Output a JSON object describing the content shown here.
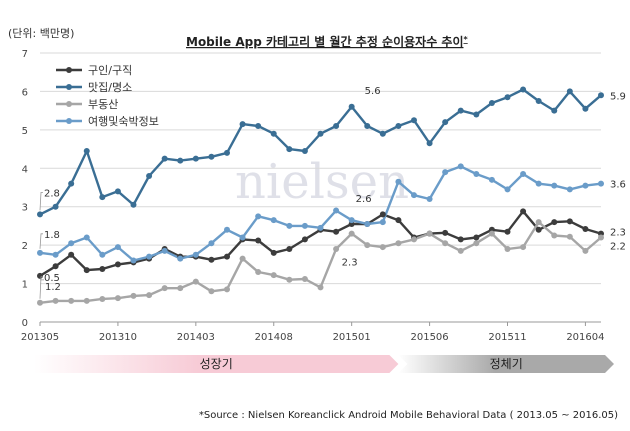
{
  "chart_data": {
    "type": "line",
    "title": "Mobile App 카테고리 별 월간 추정 순이용자수 추이",
    "title_superscript": "*",
    "unit_label": "(단위: 백만명)",
    "ylim": [
      0,
      7
    ],
    "yticks": [
      0,
      1,
      2,
      3,
      4,
      5,
      6,
      7
    ],
    "x": [
      "201305",
      "201306",
      "201307",
      "201308",
      "201309",
      "201310",
      "201311",
      "201312",
      "201401",
      "201402",
      "201403",
      "201404",
      "201405",
      "201406",
      "201407",
      "201408",
      "201409",
      "201410",
      "201411",
      "201412",
      "201501",
      "201502",
      "201503",
      "201504",
      "201505",
      "201506",
      "201507",
      "201508",
      "201509",
      "201510",
      "201511",
      "201512",
      "201601",
      "201602",
      "201603",
      "201604",
      "201605"
    ],
    "xtick_labels": [
      "201305",
      "201310",
      "201403",
      "201408",
      "201501",
      "201506",
      "201511",
      "201604"
    ],
    "xtick_indices": [
      0,
      5,
      10,
      15,
      20,
      25,
      30,
      35
    ],
    "grid": true,
    "legend_position": "top-left",
    "series": [
      {
        "name": "구인/구직",
        "color": "#3c3c3c",
        "values": [
          1.2,
          1.45,
          1.75,
          1.35,
          1.38,
          1.5,
          1.55,
          1.65,
          1.9,
          1.7,
          1.7,
          1.62,
          1.7,
          2.15,
          2.12,
          1.8,
          1.9,
          2.15,
          2.4,
          2.35,
          2.55,
          2.55,
          2.8,
          2.65,
          2.2,
          2.3,
          2.32,
          2.15,
          2.2,
          2.4,
          2.35,
          2.88,
          2.4,
          2.6,
          2.62,
          2.42,
          2.3
        ]
      },
      {
        "name": "맛집/명소",
        "color": "#3a6e94",
        "values": [
          2.8,
          3.0,
          3.6,
          4.45,
          3.25,
          3.4,
          3.05,
          3.8,
          4.25,
          4.2,
          4.25,
          4.3,
          4.4,
          5.15,
          5.1,
          4.9,
          4.5,
          4.45,
          4.9,
          5.1,
          5.6,
          5.1,
          4.9,
          5.1,
          5.25,
          4.65,
          5.2,
          5.5,
          5.4,
          5.7,
          5.85,
          6.05,
          5.75,
          5.5,
          6.0,
          5.55,
          5.9
        ]
      },
      {
        "name": "부동산",
        "color": "#a6a6a6",
        "values": [
          0.5,
          0.55,
          0.55,
          0.55,
          0.6,
          0.62,
          0.68,
          0.7,
          0.88,
          0.88,
          1.05,
          0.8,
          0.85,
          1.65,
          1.3,
          1.22,
          1.1,
          1.12,
          0.9,
          1.9,
          2.3,
          2.0,
          1.95,
          2.05,
          2.15,
          2.3,
          2.05,
          1.85,
          2.05,
          2.3,
          1.9,
          1.95,
          2.6,
          2.25,
          2.22,
          1.85,
          2.2
        ]
      },
      {
        "name": "여행및숙박정보",
        "color": "#6a9cc9",
        "values": [
          1.8,
          1.75,
          2.05,
          2.2,
          1.75,
          1.95,
          1.6,
          1.7,
          1.85,
          1.65,
          1.75,
          2.05,
          2.4,
          2.2,
          2.75,
          2.65,
          2.5,
          2.5,
          2.45,
          2.9,
          2.65,
          2.55,
          2.6,
          3.65,
          3.3,
          3.2,
          3.9,
          4.05,
          3.85,
          3.7,
          3.45,
          3.85,
          3.6,
          3.55,
          3.45,
          3.55,
          3.6
        ]
      }
    ],
    "data_labels": [
      {
        "text": "2.8",
        "series": 1,
        "index": 0,
        "dx": 4,
        "dy": -18
      },
      {
        "text": "1.8",
        "series": 3,
        "index": 0,
        "dx": 4,
        "dy": -15
      },
      {
        "text": "1.2",
        "series": 0,
        "index": 0,
        "dx": 5,
        "dy": 14
      },
      {
        "text": "0.5",
        "series": 2,
        "index": 0,
        "dx": 4,
        "dy": -22
      },
      {
        "text": "5.6",
        "series": 1,
        "index": 20,
        "dx": 13,
        "dy": -13
      },
      {
        "text": "2.6",
        "series": 3,
        "index": 20,
        "dx": 4,
        "dy": -18
      },
      {
        "text": "2.3",
        "series": 2,
        "index": 20,
        "dx": -10,
        "dy": 32
      },
      {
        "text": "5.9",
        "series": 1,
        "index": 36,
        "dx": 9,
        "dy": 4
      },
      {
        "text": "3.6",
        "series": 3,
        "index": 36,
        "dx": 9,
        "dy": 4
      },
      {
        "text": "2.3",
        "series": 0,
        "index": 36,
        "dx": 9,
        "dy": 2
      },
      {
        "text": "2.2",
        "series": 2,
        "index": 36,
        "dx": 9,
        "dy": 12
      }
    ],
    "phases": [
      {
        "label": "성장기",
        "color": "#f7cbd6",
        "start_index": 0,
        "end_index": 23
      },
      {
        "label": "정체기",
        "color": "#a9a9a9",
        "start_index": 23,
        "end_index": 36
      }
    ],
    "watermark": "nielsen",
    "source_note": "*Source : Nielsen Koreanclick Android Mobile Behavioral Data ( 2013.05 ~ 2016.05)"
  }
}
